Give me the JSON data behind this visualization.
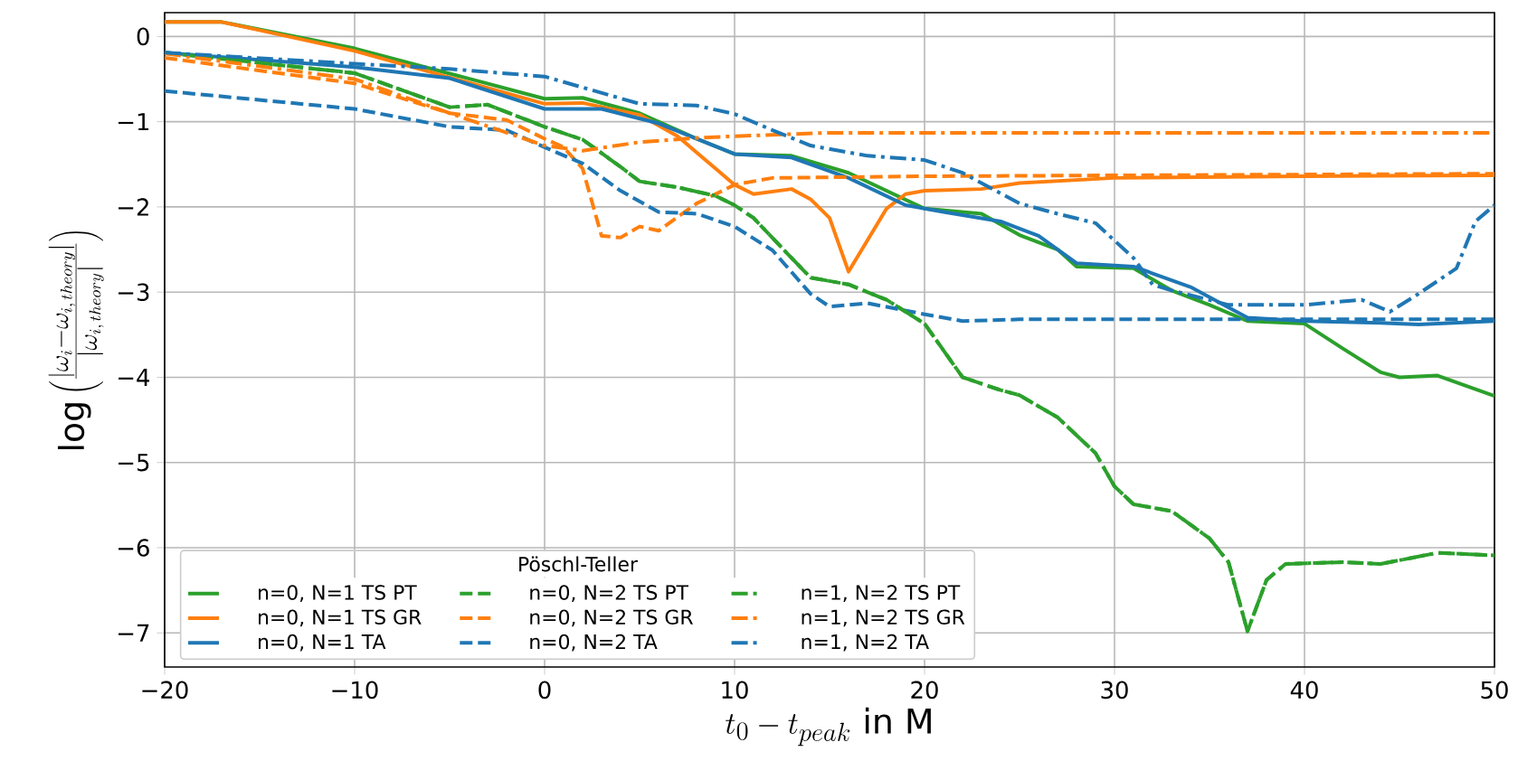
{
  "chart_data": {
    "type": "line",
    "xlabel": "t_0 - t_{peak}\\ \\mathrm{in\\ M}",
    "ylabel": "\\log\\left(\\frac{|\\omega_i - \\omega_{i,\\,theory}|}{|\\omega_{i,\\,theory}|}\\right)",
    "legend_title": "Pöschl-Teller",
    "xlim": [
      -20,
      50
    ],
    "ylim": [
      -7.4,
      0.28
    ],
    "xticks": [
      {
        "value": -20,
        "label": "−20"
      },
      {
        "value": -10,
        "label": "−10"
      },
      0,
      10,
      20,
      30,
      40,
      50
    ],
    "yticks": [
      {
        "value": -7,
        "label": "−7"
      },
      {
        "value": -6,
        "label": "−6"
      },
      {
        "value": -5,
        "label": "−5"
      },
      {
        "value": -4,
        "label": "−4"
      },
      {
        "value": -3,
        "label": "−3"
      },
      {
        "value": -2,
        "label": "−2"
      },
      {
        "value": -1,
        "label": "−1"
      },
      0
    ],
    "grid": true,
    "legend": "bottom left",
    "marker": "none",
    "series": [
      {
        "name": "n=0, N=1 TS PT",
        "color": "#2ca02c",
        "line_style": "solid",
        "x": [
          -20,
          -17,
          -10,
          0,
          2,
          5,
          8,
          10,
          13,
          16,
          20,
          23,
          25,
          27,
          28,
          31,
          33,
          35,
          37,
          40,
          42,
          44,
          45,
          47,
          50
        ],
        "values": [
          0.17,
          0.17,
          -0.14,
          -0.73,
          -0.72,
          -0.9,
          -1.2,
          -1.38,
          -1.4,
          -1.6,
          -2.02,
          -2.08,
          -2.33,
          -2.5,
          -2.7,
          -2.72,
          -2.98,
          -3.15,
          -3.34,
          -3.37,
          -3.66,
          -3.94,
          -4.0,
          -3.98,
          -4.22
        ]
      },
      {
        "name": "n=0, N=1 TS GR",
        "color": "#ff7f0e",
        "line_style": "solid",
        "x": [
          -20,
          -17,
          -10,
          0,
          2,
          5,
          7,
          9,
          10,
          11,
          13,
          14,
          15,
          16,
          18,
          19,
          20,
          23,
          25,
          30,
          40,
          50
        ],
        "values": [
          0.17,
          0.17,
          -0.17,
          -0.79,
          -0.78,
          -0.92,
          -1.17,
          -1.55,
          -1.74,
          -1.85,
          -1.79,
          -1.91,
          -2.13,
          -2.76,
          -2.02,
          -1.85,
          -1.81,
          -1.79,
          -1.72,
          -1.66,
          -1.64,
          -1.63
        ]
      },
      {
        "name": "n=0, N=1 TA",
        "color": "#1f77b4",
        "line_style": "solid",
        "x": [
          -20,
          -10,
          -5,
          0,
          3,
          6,
          10,
          13,
          16,
          19,
          21,
          24,
          26,
          28,
          31,
          34,
          37,
          40,
          44,
          46,
          50
        ],
        "values": [
          -0.19,
          -0.36,
          -0.49,
          -0.85,
          -0.85,
          -1.02,
          -1.38,
          -1.42,
          -1.66,
          -1.98,
          -2.06,
          -2.17,
          -2.34,
          -2.66,
          -2.7,
          -2.94,
          -3.3,
          -3.34,
          -3.36,
          -3.38,
          -3.34
        ]
      },
      {
        "name": "n=0, N=2 TS PT",
        "color": "#2ca02c",
        "line_style": "dashed",
        "x": [
          -20,
          -10,
          -5,
          -3,
          0,
          2,
          4,
          5,
          7,
          9,
          10,
          11,
          13,
          14,
          16,
          18,
          20,
          22,
          24,
          25,
          27,
          29,
          30,
          31,
          33,
          35,
          36,
          37,
          38,
          39,
          42,
          44,
          47,
          50
        ],
        "values": [
          -0.19,
          -0.43,
          -0.83,
          -0.8,
          -1.06,
          -1.21,
          -1.53,
          -1.7,
          -1.77,
          -1.87,
          -1.98,
          -2.13,
          -2.6,
          -2.83,
          -2.91,
          -3.09,
          -3.37,
          -4.0,
          -4.15,
          -4.21,
          -4.47,
          -4.89,
          -5.28,
          -5.49,
          -5.57,
          -5.89,
          -6.17,
          -6.98,
          -6.38,
          -6.19,
          -6.17,
          -6.19,
          -6.06,
          -6.09
        ]
      },
      {
        "name": "n=0, N=2 TS GR",
        "color": "#ff7f0e",
        "line_style": "dashed",
        "x": [
          -20,
          -10,
          -5,
          -2,
          0,
          1,
          2,
          3,
          4,
          5,
          6,
          8,
          10,
          12,
          20,
          50
        ],
        "values": [
          -0.25,
          -0.55,
          -0.9,
          -0.98,
          -1.2,
          -1.3,
          -1.55,
          -2.34,
          -2.36,
          -2.23,
          -2.28,
          -1.96,
          -1.74,
          -1.66,
          -1.64,
          -1.61
        ]
      },
      {
        "name": "n=0, N=2 TA",
        "color": "#1f77b4",
        "line_style": "dashed",
        "x": [
          -20,
          -10,
          -5,
          -2,
          0,
          2,
          4,
          6,
          8,
          10,
          12,
          14,
          15,
          17,
          20,
          22,
          25,
          50
        ],
        "values": [
          -0.64,
          -0.85,
          -1.06,
          -1.1,
          -1.3,
          -1.49,
          -1.81,
          -2.06,
          -2.08,
          -2.23,
          -2.51,
          -3.02,
          -3.17,
          -3.13,
          -3.26,
          -3.34,
          -3.32,
          -3.32
        ]
      },
      {
        "name": "n=1, N=2 TS PT",
        "color": "#2ca02c",
        "line_style": "dashdot",
        "x": [
          -20,
          -10,
          -5,
          -3,
          0,
          2,
          4,
          5,
          7,
          9,
          10,
          11,
          13,
          14,
          16,
          18,
          20,
          22,
          24,
          25,
          27,
          29,
          30,
          31,
          33,
          35,
          36,
          37,
          38,
          39,
          42,
          44,
          47,
          50
        ],
        "values": [
          -0.19,
          -0.43,
          -0.83,
          -0.8,
          -1.06,
          -1.21,
          -1.53,
          -1.7,
          -1.77,
          -1.87,
          -1.98,
          -2.13,
          -2.6,
          -2.83,
          -2.91,
          -3.09,
          -3.37,
          -4.0,
          -4.15,
          -4.21,
          -4.47,
          -4.89,
          -5.28,
          -5.49,
          -5.57,
          -5.89,
          -6.17,
          -6.98,
          -6.38,
          -6.19,
          -6.17,
          -6.19,
          -6.06,
          -6.09
        ]
      },
      {
        "name": "n=1, N=2 TS GR",
        "color": "#ff7f0e",
        "line_style": "dashdot",
        "x": [
          -20,
          -10,
          -5,
          0,
          2,
          5,
          8,
          10,
          15,
          50
        ],
        "values": [
          -0.2,
          -0.5,
          -0.9,
          -1.28,
          -1.34,
          -1.24,
          -1.19,
          -1.17,
          -1.13,
          -1.13
        ]
      },
      {
        "name": "n=1, N=2 TA",
        "color": "#1f77b4",
        "line_style": "dashdot",
        "x": [
          -20,
          -10,
          -5,
          0,
          5,
          8,
          10,
          12,
          14,
          17,
          20,
          22,
          25,
          27,
          29,
          31,
          32,
          33,
          36,
          40,
          43,
          44.5,
          46,
          48,
          49,
          50
        ],
        "values": [
          -0.19,
          -0.32,
          -0.38,
          -0.47,
          -0.79,
          -0.81,
          -0.91,
          -1.1,
          -1.28,
          -1.4,
          -1.45,
          -1.6,
          -1.96,
          -2.08,
          -2.19,
          -2.6,
          -2.91,
          -2.98,
          -3.15,
          -3.15,
          -3.09,
          -3.23,
          -3.02,
          -2.72,
          -2.17,
          -1.98
        ]
      }
    ]
  }
}
